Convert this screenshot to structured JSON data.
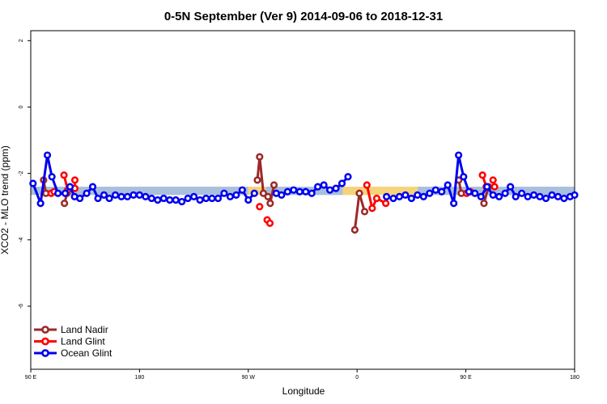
{
  "chart_data": {
    "type": "line",
    "title": "0-5N September (Ver 9)   2014-09-06 to 2018-12-31",
    "xlabel": "Longitude",
    "ylabel": "XCO2 - MLO trend (ppm)",
    "xlim": [
      90,
      450
    ],
    "ylim": [
      -7.9,
      2.3
    ],
    "x_ticks": [
      {
        "value": 90,
        "label": "90 E"
      },
      {
        "value": 162,
        "label": "180"
      },
      {
        "value": 234,
        "label": "90 W"
      },
      {
        "value": 306,
        "label": "0"
      },
      {
        "value": 378,
        "label": "90 E"
      },
      {
        "value": 450,
        "label": "180"
      }
    ],
    "y_ticks": [
      {
        "value": 2,
        "label": "2"
      },
      {
        "value": 0,
        "label": "0"
      },
      {
        "value": -2,
        "label": "-2"
      },
      {
        "value": -4,
        "label": "-4"
      },
      {
        "value": -6,
        "label": "-6"
      }
    ],
    "grid": false,
    "legend_position": "bottom-left",
    "bands": [
      {
        "color": "#a9bfdc",
        "x_ranges": [
          [
            90,
            234
          ],
          [
            245.5,
            296.5
          ],
          [
            346,
            450
          ]
        ],
        "y_range": [
          -2.65,
          -2.4
        ]
      },
      {
        "color": "#f6d27a",
        "x_ranges": [
          [
            234,
            245.5
          ],
          [
            296.5,
            346
          ]
        ],
        "y_range": [
          -2.65,
          -2.4
        ]
      }
    ],
    "series": [
      {
        "name": "Land Nadir",
        "color": "#9b2a2a",
        "segments": [
          [
            [
              98.5,
              -2.2
            ],
            [
              100,
              -2.6
            ]
          ],
          [
            [
              112.3,
              -2.9
            ],
            [
              114,
              -2.6
            ]
          ],
          [
            [
              240,
              -2.2
            ],
            [
              241.5,
              -1.5
            ],
            [
              244,
              -2.6
            ],
            [
              247,
              -2.7
            ],
            [
              248.5,
              -2.9
            ],
            [
              251,
              -2.35
            ]
          ],
          [
            [
              304.5,
              -3.7
            ],
            [
              307.5,
              -2.6
            ],
            [
              311,
              -3.15
            ]
          ],
          [
            [
              373.3,
              -2.2
            ],
            [
              375,
              -2.6
            ]
          ],
          [
            [
              390,
              -2.9
            ],
            [
              393,
              -2.4
            ]
          ]
        ]
      },
      {
        "name": "Land Glint",
        "color": "#ff0000",
        "segments": [
          [
            [
              103.5,
              -2.6
            ],
            [
              105.5,
              -2.55
            ]
          ],
          [
            [
              112,
              -2.05
            ],
            [
              114.5,
              -2.5
            ]
          ],
          [
            [
              119.2,
              -2.2
            ],
            [
              119.2,
              -2.45
            ]
          ],
          [
            [
              241.5,
              -3.0
            ]
          ],
          [
            [
              246.5,
              -3.4
            ],
            [
              248.3,
              -3.5
            ]
          ],
          [
            [
              312.5,
              -2.35
            ],
            [
              316,
              -3.05
            ],
            [
              319,
              -2.75
            ],
            [
              325,
              -2.9
            ]
          ],
          [
            [
              378.5,
              -2.6
            ],
            [
              381,
              -2.55
            ]
          ],
          [
            [
              389,
              -2.05
            ],
            [
              391.5,
              -2.4
            ]
          ],
          [
            [
              396,
              -2.2
            ],
            [
              397,
              -2.4
            ]
          ]
        ]
      },
      {
        "name": "Ocean Glint",
        "color": "#0000ee",
        "segments": [
          [
            [
              91.5,
              -2.3
            ],
            [
              96.5,
              -2.9
            ],
            [
              101,
              -1.45
            ],
            [
              104,
              -2.1
            ],
            [
              108,
              -2.6
            ],
            [
              112.8,
              -2.6
            ],
            [
              116,
              -2.4
            ],
            [
              119,
              -2.7
            ],
            [
              122.5,
              -2.75
            ],
            [
              127,
              -2.6
            ],
            [
              131,
              -2.4
            ],
            [
              134.5,
              -2.75
            ],
            [
              138.5,
              -2.65
            ],
            [
              142,
              -2.75
            ],
            [
              146,
              -2.65
            ],
            [
              150,
              -2.7
            ],
            [
              154,
              -2.7
            ],
            [
              158,
              -2.65
            ],
            [
              162,
              -2.65
            ],
            [
              166,
              -2.7
            ],
            [
              170,
              -2.75
            ],
            [
              174,
              -2.8
            ],
            [
              178,
              -2.75
            ],
            [
              182,
              -2.8
            ],
            [
              186,
              -2.8
            ],
            [
              190,
              -2.85
            ],
            [
              194,
              -2.75
            ],
            [
              198,
              -2.7
            ],
            [
              202,
              -2.8
            ],
            [
              206,
              -2.75
            ],
            [
              210,
              -2.75
            ],
            [
              214,
              -2.75
            ],
            [
              218,
              -2.6
            ],
            [
              222,
              -2.7
            ],
            [
              226,
              -2.65
            ],
            [
              230,
              -2.5
            ],
            [
              234,
              -2.8
            ],
            [
              238,
              -2.6
            ]
          ],
          [
            [
              252.5,
              -2.6
            ],
            [
              256,
              -2.65
            ],
            [
              260,
              -2.55
            ],
            [
              264,
              -2.5
            ],
            [
              268,
              -2.55
            ],
            [
              272,
              -2.55
            ],
            [
              276,
              -2.6
            ],
            [
              280,
              -2.4
            ],
            [
              284,
              -2.35
            ],
            [
              288,
              -2.5
            ],
            [
              292,
              -2.45
            ],
            [
              296,
              -2.3
            ],
            [
              300,
              -2.1
            ]
          ],
          [
            [
              325.5,
              -2.7
            ],
            [
              330,
              -2.75
            ],
            [
              334,
              -2.7
            ],
            [
              338,
              -2.65
            ],
            [
              342,
              -2.75
            ],
            [
              346,
              -2.65
            ],
            [
              350,
              -2.7
            ],
            [
              354,
              -2.6
            ],
            [
              358,
              -2.5
            ],
            [
              362,
              -2.55
            ],
            [
              366,
              -2.35
            ],
            [
              370,
              -2.9
            ],
            [
              373.2,
              -1.45
            ],
            [
              376.5,
              -2.1
            ],
            [
              380,
              -2.55
            ],
            [
              384,
              -2.6
            ],
            [
              388,
              -2.7
            ],
            [
              392,
              -2.4
            ],
            [
              396,
              -2.65
            ],
            [
              400,
              -2.7
            ],
            [
              404,
              -2.6
            ],
            [
              407.5,
              -2.4
            ],
            [
              411,
              -2.7
            ],
            [
              415,
              -2.6
            ],
            [
              419,
              -2.7
            ],
            [
              423,
              -2.65
            ],
            [
              427,
              -2.7
            ],
            [
              431,
              -2.75
            ],
            [
              435,
              -2.65
            ],
            [
              439,
              -2.7
            ],
            [
              443,
              -2.75
            ],
            [
              447,
              -2.7
            ],
            [
              450,
              -2.65
            ]
          ]
        ]
      }
    ]
  }
}
